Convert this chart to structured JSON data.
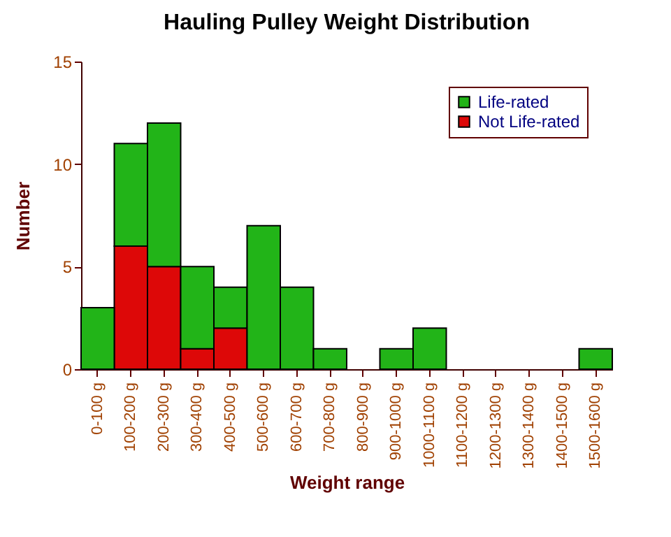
{
  "chart_data": {
    "type": "bar",
    "title": "Hauling Pulley Weight Distribution",
    "xlabel": "Weight range",
    "ylabel": "Number",
    "categories": [
      "0-100 g",
      "100-200 g",
      "200-300 g",
      "300-400 g",
      "400-500 g",
      "500-600 g",
      "600-700 g",
      "700-800 g",
      "800-900 g",
      "900-1000 g",
      "1000-1100 g",
      "1100-1200 g",
      "1200-1300 g",
      "1300-1400 g",
      "1400-1500 g",
      "1500-1600 g"
    ],
    "stacked": true,
    "series": [
      {
        "name": "Not Life-rated",
        "color": "#dd0808",
        "values": [
          0,
          6,
          5,
          1,
          2,
          0,
          0,
          0,
          0,
          0,
          0,
          0,
          0,
          0,
          0,
          0
        ]
      },
      {
        "name": "Life-rated",
        "color": "#22b418",
        "values": [
          3,
          5,
          7,
          4,
          2,
          7,
          4,
          1,
          0,
          1,
          2,
          0,
          0,
          0,
          0,
          1
        ]
      }
    ],
    "ylim": [
      0,
      15
    ],
    "yticks": [
      0,
      5,
      10,
      15
    ],
    "grid": false,
    "legend": "top right"
  }
}
